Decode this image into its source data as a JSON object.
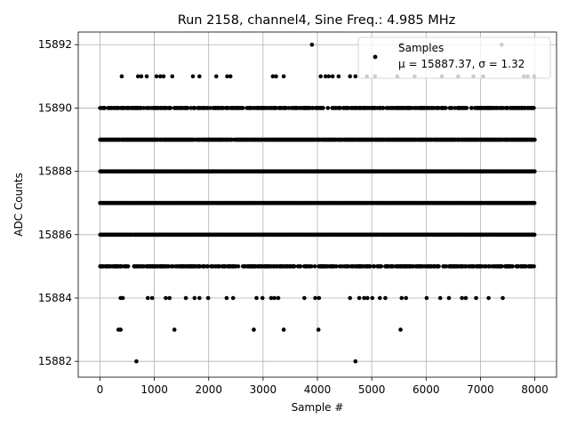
{
  "chart_data": {
    "type": "scatter",
    "title": "Run 2158, channel4, Sine Freq.: 4.985 MHz",
    "xlabel": "Sample #",
    "ylabel": "ADC Counts",
    "xlim": [
      -400,
      8400
    ],
    "ylim": [
      15881.5,
      15892.4
    ],
    "x_ticks": [
      0,
      1000,
      2000,
      3000,
      4000,
      5000,
      6000,
      7000,
      8000
    ],
    "y_ticks": [
      15882,
      15884,
      15886,
      15888,
      15890,
      15892
    ],
    "grid": true,
    "legend": {
      "placement": "upper-right",
      "entries": [
        {
          "label": "Samples",
          "stats": "μ = 15887.37, σ = 1.32",
          "color": "#000000"
        }
      ]
    },
    "marker_color": "#000000",
    "series": [
      {
        "points_note_free": true,
        "dense_levels": [
          {
            "y": 15885,
            "x_range": [
              0,
              8000
            ],
            "density": 0.55
          },
          {
            "y": 15886,
            "x_range": [
              0,
              8000
            ],
            "density": 0.95
          },
          {
            "y": 15887,
            "x_range": [
              0,
              8000
            ],
            "density": 1.0
          },
          {
            "y": 15888,
            "x_range": [
              0,
              8000
            ],
            "density": 1.0
          },
          {
            "y": 15889,
            "x_range": [
              0,
              8000
            ],
            "density": 0.95
          },
          {
            "y": 15890,
            "x_range": [
              0,
              8000
            ],
            "density": 0.6
          }
        ],
        "sparse_points": [
          [
            670,
            15882
          ],
          [
            4700,
            15882
          ],
          [
            340,
            15883
          ],
          [
            380,
            15883
          ],
          [
            1370,
            15883
          ],
          [
            2830,
            15883
          ],
          [
            3380,
            15883
          ],
          [
            4020,
            15883
          ],
          [
            5530,
            15883
          ],
          [
            380,
            15884
          ],
          [
            420,
            15884
          ],
          [
            880,
            15884
          ],
          [
            960,
            15884
          ],
          [
            1210,
            15884
          ],
          [
            1280,
            15884
          ],
          [
            1580,
            15884
          ],
          [
            1740,
            15884
          ],
          [
            1830,
            15884
          ],
          [
            1990,
            15884
          ],
          [
            2330,
            15884
          ],
          [
            2450,
            15884
          ],
          [
            2880,
            15884
          ],
          [
            2990,
            15884
          ],
          [
            3150,
            15884
          ],
          [
            3210,
            15884
          ],
          [
            3280,
            15884
          ],
          [
            3760,
            15884
          ],
          [
            3960,
            15884
          ],
          [
            4030,
            15884
          ],
          [
            4600,
            15884
          ],
          [
            4770,
            15884
          ],
          [
            4860,
            15884
          ],
          [
            4920,
            15884
          ],
          [
            5010,
            15884
          ],
          [
            5150,
            15884
          ],
          [
            5250,
            15884
          ],
          [
            5550,
            15884
          ],
          [
            5630,
            15884
          ],
          [
            6010,
            15884
          ],
          [
            6260,
            15884
          ],
          [
            6420,
            15884
          ],
          [
            6660,
            15884
          ],
          [
            6730,
            15884
          ],
          [
            6920,
            15884
          ],
          [
            7150,
            15884
          ],
          [
            7410,
            15884
          ],
          [
            400,
            15891
          ],
          [
            700,
            15891
          ],
          [
            760,
            15891
          ],
          [
            860,
            15891
          ],
          [
            1040,
            15891
          ],
          [
            1110,
            15891
          ],
          [
            1170,
            15891
          ],
          [
            1330,
            15891
          ],
          [
            1710,
            15891
          ],
          [
            1830,
            15891
          ],
          [
            2140,
            15891
          ],
          [
            2340,
            15891
          ],
          [
            2400,
            15891
          ],
          [
            3180,
            15891
          ],
          [
            3240,
            15891
          ],
          [
            3380,
            15891
          ],
          [
            4060,
            15891
          ],
          [
            4150,
            15891
          ],
          [
            4210,
            15891
          ],
          [
            4280,
            15891
          ],
          [
            4390,
            15891
          ],
          [
            4600,
            15891
          ],
          [
            4700,
            15891
          ],
          [
            4910,
            15891
          ],
          [
            5060,
            15891
          ],
          [
            5470,
            15891
          ],
          [
            5790,
            15891
          ],
          [
            6290,
            15891
          ],
          [
            6590,
            15891
          ],
          [
            6870,
            15891
          ],
          [
            7050,
            15891
          ],
          [
            7800,
            15891
          ],
          [
            7870,
            15891
          ],
          [
            7990,
            15891
          ],
          [
            3900,
            15892
          ],
          [
            5540,
            15892
          ],
          [
            7390,
            15892
          ]
        ]
      }
    ]
  }
}
